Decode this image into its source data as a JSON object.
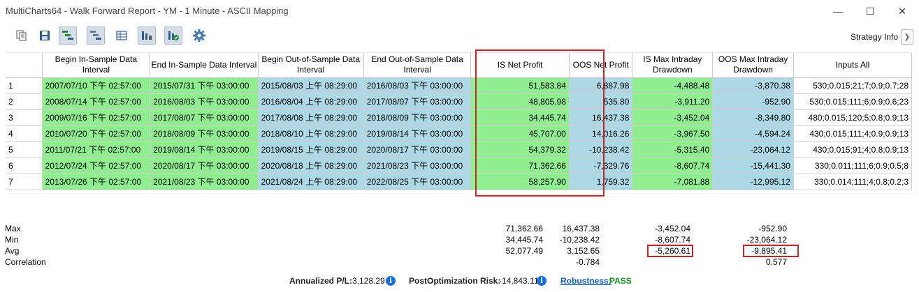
{
  "window": {
    "title": "MultiCharts64 - Walk Forward Report - YM - 1 Minute - ASCII Mapping",
    "minimize_glyph": "—",
    "maximize_glyph": "☐",
    "close_glyph": "✕"
  },
  "toolbar": {
    "buttons": [
      "copy-icon",
      "save-icon",
      "tree-view-icon",
      "tree-view-alt-icon",
      "table-icon",
      "chart-columns-icon",
      "chart-check-icon",
      "gear-icon"
    ],
    "strategy_info_label": "Strategy Info",
    "strategy_info_arrow": "❯"
  },
  "table": {
    "headers": [
      "Begin In-Sample Data Interval",
      "End In-Sample Data Interval",
      "Begin Out-of-Sample Data Interval",
      "End Out-of-Sample Data Interval",
      "IS Net Profit",
      "OOS Net Profit",
      "IS Max Intraday Drawdown",
      "OOS Max Intraday Drawdown",
      "Inputs All"
    ],
    "rows": [
      [
        "1",
        "2007/07/10 下午 02:57:00",
        "2015/07/31 下午 03:00:00",
        "2015/08/03 上午 08:29:00",
        "2016/08/03 下午 03:00:00",
        "51,583.84",
        "6,887.98",
        "-4,488.48",
        "-3,870.38",
        "530;0.015;21;7;0.9;0.7;28"
      ],
      [
        "2",
        "2008/07/14 下午 02:57:00",
        "2016/08/03 下午 03:00:00",
        "2016/08/04 上午 08:29:00",
        "2017/08/07 下午 03:00:00",
        "48,805.98",
        "535.80",
        "-3,911.20",
        "-952.90",
        "530;0.015;111;6;0.9;0.6;23"
      ],
      [
        "3",
        "2009/07/16 下午 02:57:00",
        "2017/08/07 下午 03:00:00",
        "2017/08/08 上午 08:29:00",
        "2018/08/09 下午 03:00:00",
        "34,445.74",
        "16,437.38",
        "-3,452.04",
        "-8,349.80",
        "480;0.015;120;5;0.8;0.9;13"
      ],
      [
        "4",
        "2010/07/20 下午 02:57:00",
        "2018/08/09 下午 03:00:00",
        "2018/08/10 上午 08:29:00",
        "2019/08/14 下午 03:00:00",
        "45,707.00",
        "14,016.26",
        "-3,967.50",
        "-4,594.24",
        "430;0.015;111;4;0.9;0.9;13"
      ],
      [
        "5",
        "2011/07/21 下午 02:57:00",
        "2019/08/14 下午 03:00:00",
        "2019/08/15 上午 08:29:00",
        "2020/08/17 下午 03:00:00",
        "54,379.32",
        "-10,238.42",
        "-5,315.40",
        "-23,064.12",
        "430;0.015;91;4;0.8;0.9;13"
      ],
      [
        "6",
        "2012/07/24 下午 02:57:00",
        "2020/08/17 下午 03:00:00",
        "2020/08/18 上午 08:29:00",
        "2021/08/23 下午 03:00:00",
        "71,362.66",
        "-7,329.76",
        "-8,607.74",
        "-15,441.30",
        "330;0.011;111;6;0.9;0.5;8"
      ],
      [
        "7",
        "2013/07/26 下午 02:57:00",
        "2021/08/23 下午 03:00:00",
        "2021/08/24 上午 08:29:00",
        "2022/08/25 下午 03:00:00",
        "58,257.90",
        "1,759.32",
        "-7,081.88",
        "-12,995.12",
        "330;0.014;111;4;0.8;0.2;3"
      ]
    ]
  },
  "summary": {
    "labels": [
      "Max",
      "Min",
      "Avg",
      "Correlation"
    ],
    "is_net_profit": [
      "71,362.66",
      "34,445.74",
      "52,077.49",
      ""
    ],
    "oos_net_profit": [
      "16,437.38",
      "-10,238.42",
      "3,152.65",
      "-0.784"
    ],
    "is_max_dd": [
      "-3,452.04",
      "-8,607.74",
      "-5,260.61",
      ""
    ],
    "oos_max_dd": [
      "-952.90",
      "-23,064.12",
      "-9,895.41",
      "0.577"
    ]
  },
  "footer": {
    "annualized_label": "Annualized P/L:",
    "annualized_value": "3,128.29",
    "risk_label": "PostOptimization Risk:",
    "risk_value": "-14,843.11",
    "robustness_label": "Robustness:",
    "robustness_value": "PASS",
    "info_glyph": "i"
  },
  "colors": {
    "in_sample": "#90ee90",
    "out_of_sample": "#add8e6",
    "highlight": "#c0272d"
  }
}
